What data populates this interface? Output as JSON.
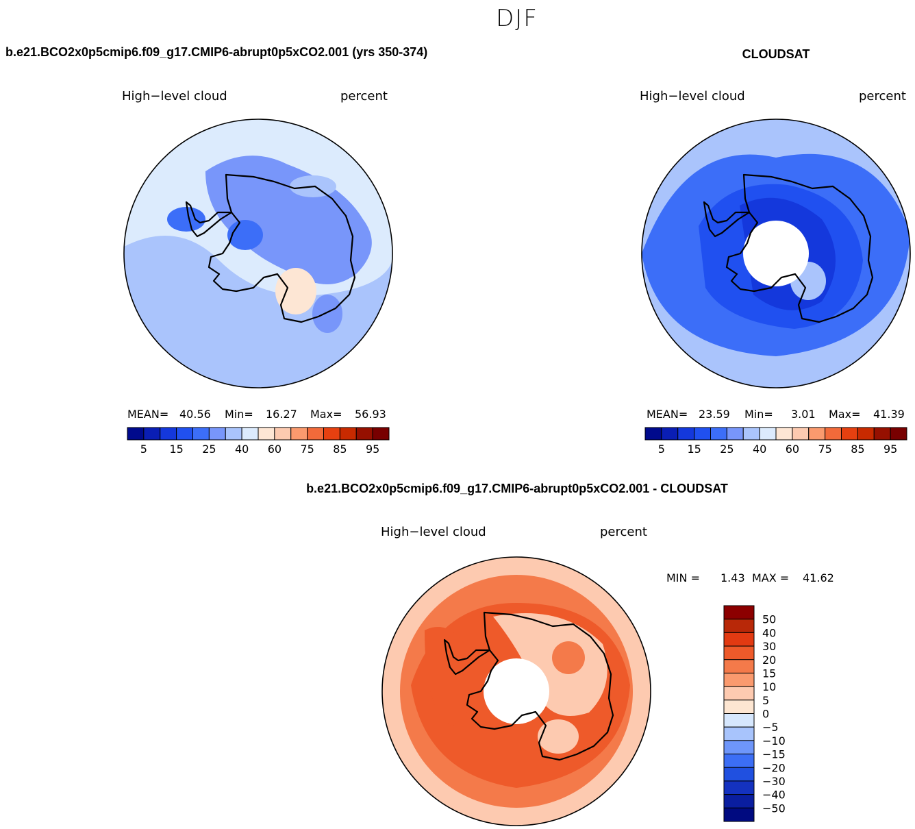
{
  "page_title": "DJF",
  "colors": {
    "abs_palette": [
      "#000a8c",
      "#0a1eb4",
      "#1438dc",
      "#2050f0",
      "#3c6ef8",
      "#7896fa",
      "#aac4fc",
      "#dcebfd",
      "#fde6d4",
      "#fccab0",
      "#fa9a6e",
      "#f26a3a",
      "#e64010",
      "#c82a00",
      "#961000",
      "#780000"
    ],
    "diff_palette": [
      "#000a80",
      "#0a1ea0",
      "#1432c0",
      "#2050e0",
      "#3c6ef5",
      "#6e96fa",
      "#a8c4fc",
      "#d6e7fd",
      "#fde6d2",
      "#fdcab0",
      "#fa9a6e",
      "#f47a4a",
      "#ee5a2a",
      "#e23a12",
      "#b82808",
      "#8c0000"
    ]
  },
  "panels": [
    {
      "id": "model",
      "case_title": "b.e21.BCO2x0p5cmip6.f09_g17.CMIP6-abrupt0p5xCO2.001 (yrs 350-374)",
      "variable": "High−level cloud",
      "units": "percent",
      "stats": {
        "mean_label": "MEAN=",
        "mean": "40.56",
        "min_label": "Min=",
        "min": "16.27",
        "max_label": "Max=",
        "max": "56.93"
      },
      "colorbar_ticks": [
        "5",
        "15",
        "25",
        "40",
        "60",
        "75",
        "85",
        "95"
      ],
      "has_pole_hole": false,
      "field": {
        "background_level": 7,
        "patches": [
          {
            "level": 6,
            "desc": "ross-sea-band"
          },
          {
            "level": 5,
            "desc": "east-antarctic-low"
          },
          {
            "level": 4,
            "desc": "interior-min"
          },
          {
            "level": 8,
            "desc": "coastal-highs"
          }
        ]
      }
    },
    {
      "id": "obs",
      "case_title": "CLOUDSAT",
      "variable": "High−level cloud",
      "units": "percent",
      "stats": {
        "mean_label": "MEAN=",
        "mean": "23.59",
        "min_label": "Min=",
        "min": "3.01",
        "max_label": "Max=",
        "max": "41.39"
      },
      "colorbar_ticks": [
        "5",
        "15",
        "25",
        "40",
        "60",
        "75",
        "85",
        "95"
      ],
      "has_pole_hole": true,
      "field": {
        "background_level": 5,
        "patches": [
          {
            "level": 6,
            "desc": "outer-ring"
          },
          {
            "level": 4,
            "desc": "inner-ring"
          },
          {
            "level": 3,
            "desc": "east-antarctic-min"
          },
          {
            "level": 2,
            "desc": "deep-min"
          }
        ]
      }
    }
  ],
  "difference": {
    "case_title": "b.e21.BCO2x0p5cmip6.f09_g17.CMIP6-abrupt0p5xCO2.001 - CLOUDSAT",
    "variable": "High−level cloud",
    "units": "percent",
    "min_label": "MIN =",
    "min": "1.43",
    "max_label": "MAX =",
    "max": "41.62",
    "colorbar_ticks": [
      "50",
      "40",
      "30",
      "20",
      "15",
      "10",
      "5",
      "0",
      "−5",
      "−10",
      "−15",
      "−20",
      "−30",
      "−40",
      "−50"
    ],
    "has_pole_hole": true,
    "field": {
      "background_level": 10,
      "patches": [
        {
          "level": 9,
          "desc": "outer-edge"
        },
        {
          "level": 11,
          "desc": "mid-ring"
        },
        {
          "level": 12,
          "desc": "high-east"
        },
        {
          "level": 9,
          "desc": "interior-low"
        }
      ]
    }
  }
}
